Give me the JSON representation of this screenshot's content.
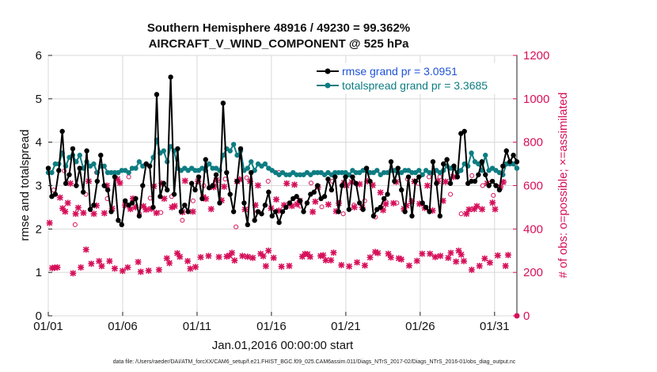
{
  "chart_data": {
    "type": "line",
    "title": "Southern Hemisphere 48916 / 49230 = 99.362%",
    "subtitle": "AIRCRAFT_V_WIND_COMPONENT @ 525 hPa",
    "xlabel": "Jan.01,2016 00:00:00 start",
    "ylabel": "rmse and totalspread",
    "y2label": "# of obs: o=possible; ×=assimilated",
    "xlim": [
      0,
      31.5
    ],
    "ylim": [
      0,
      6
    ],
    "y2lim": [
      0,
      1200
    ],
    "x_ticks": [
      0,
      5,
      10,
      15,
      20,
      25,
      30
    ],
    "x_tick_labels": [
      "01/01",
      "01/06",
      "01/11",
      "01/16",
      "01/21",
      "01/26",
      "01/31"
    ],
    "y_ticks": [
      0,
      1,
      2,
      3,
      4,
      5,
      6
    ],
    "y2_ticks": [
      0,
      200,
      400,
      600,
      800,
      1000,
      1200
    ],
    "colors": {
      "rmse": "#000000",
      "spread": "#0d7d82",
      "obs": "#d6105a",
      "legend_rmse_text": "#1f52d6",
      "legend_spread_text": "#0d7d82"
    },
    "legend": [
      "rmse grand pr = 3.0951",
      "totalspread grand pr = 3.3685"
    ],
    "series": [
      {
        "name": "rmse",
        "values": [
          3.4,
          2.75,
          2.8,
          3.35,
          4.25,
          3.05,
          3.25,
          3.85,
          3.0,
          3.4,
          2.85,
          3.8,
          2.45,
          2.55,
          3.1,
          3.7,
          3.0,
          2.9,
          2.4,
          3.2,
          2.2,
          2.1,
          2.65,
          2.55,
          2.6,
          2.7,
          2.3,
          3.0,
          3.5,
          3.45,
          2.5,
          5.1,
          2.75,
          3.05,
          2.9,
          5.5,
          2.8,
          3.85,
          2.4,
          2.55,
          2.4,
          3.05,
          2.9,
          3.2,
          2.7,
          3.6,
          2.95,
          3.0,
          3.25,
          2.6,
          4.9,
          3.3,
          2.8,
          2.4,
          3.1,
          3.85,
          2.6,
          2.1,
          3.3,
          2.2,
          2.4,
          2.35,
          2.55,
          2.85,
          2.3,
          2.4,
          2.15,
          2.4,
          2.5,
          2.6,
          2.7,
          2.75,
          2.65,
          2.4,
          2.6,
          2.8,
          2.85,
          3.0,
          2.7,
          2.75,
          3.15,
          2.9,
          3.2,
          2.4,
          3.0,
          3.2,
          2.45,
          3.2,
          3.05,
          2.6,
          2.45,
          3.4,
          3.1,
          2.3,
          2.45,
          2.5,
          2.7,
          2.8,
          3.55,
          3.1,
          3.4,
          2.9,
          2.4,
          3.2,
          2.3,
          3.1,
          3.2,
          2.6,
          2.5,
          2.4,
          3.55,
          3.05,
          2.3,
          3.5,
          3.6,
          3.05,
          3.45,
          3.2,
          4.2,
          4.25,
          3.05,
          3.1,
          3.1,
          3.25,
          3.55,
          3.25,
          3.0,
          3.1,
          3.0,
          2.9,
          3.45,
          3.8,
          3.55,
          3.7,
          3.55
        ]
      },
      {
        "name": "totalspread",
        "values": [
          3.3,
          3.3,
          3.5,
          3.5,
          3.75,
          3.45,
          3.65,
          3.7,
          3.55,
          3.7,
          3.4,
          3.55,
          3.45,
          3.5,
          3.3,
          3.45,
          3.45,
          3.3,
          3.3,
          3.3,
          3.3,
          3.35,
          3.35,
          3.3,
          3.4,
          3.4,
          3.55,
          3.45,
          3.5,
          3.45,
          3.65,
          4.05,
          3.75,
          3.8,
          3.55,
          3.9,
          3.8,
          3.4,
          3.35,
          3.4,
          3.35,
          3.4,
          3.35,
          3.35,
          3.4,
          3.35,
          3.5,
          3.4,
          3.4,
          3.35,
          3.7,
          3.85,
          3.8,
          3.95,
          3.7,
          3.8,
          3.35,
          3.4,
          3.55,
          3.35,
          3.5,
          3.45,
          3.5,
          3.4,
          3.35,
          3.3,
          3.25,
          3.3,
          3.25,
          3.25,
          3.3,
          3.25,
          3.25,
          3.25,
          3.3,
          3.25,
          3.3,
          3.3,
          3.3,
          3.25,
          3.3,
          3.25,
          3.3,
          3.3,
          3.3,
          3.3,
          3.25,
          3.35,
          3.3,
          3.3,
          3.35,
          3.35,
          3.3,
          3.3,
          3.35,
          3.25,
          3.3,
          3.3,
          3.35,
          3.35,
          3.3,
          3.3,
          3.35,
          3.35,
          3.3,
          3.3,
          3.35,
          3.25,
          3.35,
          3.3,
          3.3,
          3.35,
          3.3,
          3.35,
          3.45,
          3.4,
          3.4,
          3.3,
          3.35,
          3.5,
          3.45,
          3.75,
          3.55,
          3.5,
          3.35,
          3.7,
          3.35,
          3.4,
          3.35,
          3.3,
          3.25,
          3.5,
          3.5,
          3.5,
          3.4
        ]
      },
      {
        "name": "obs_assimilated",
        "axis": "right",
        "values": [
          428,
          220,
          222,
          223,
          545,
          495,
          480,
          520,
          610,
          196,
          470,
          498,
          223,
          474,
          305,
          620,
          240,
          470,
          508,
          252,
          229,
          473,
          600,
          252,
          494,
          218,
          630,
          612,
          207,
          510,
          223,
          492,
          540,
          500,
          248,
          203,
          505,
          489,
          208,
          493,
          597,
          474,
          212,
          610,
          540,
          265,
          243,
          500,
          506,
          288,
          272,
          478,
          622,
          252,
          217,
          480,
          225,
          620,
          270,
          547,
          539,
          276,
          492,
          593,
          625,
          271,
          532,
          595,
          273,
          278,
          290,
          255,
          619,
          629,
          276,
          490,
          272,
          620,
          267,
          510,
          601,
          286,
          275,
          229,
          300,
          496,
          267,
          536,
          484,
          227,
          510,
          610,
          230,
          506,
          604,
          514,
          530,
          273,
          285,
          284,
          272,
          479,
          526,
          593,
          276,
          279,
          256,
          513,
          256,
          291,
          482,
          519,
          234,
          613,
          600,
          228,
          616,
          500,
          246,
          607,
          500,
          232,
          620,
          269,
          602,
          294,
          289,
          568,
          487,
          515,
          286,
          269,
          519,
          617,
          265,
          260,
          493,
          508,
          231,
          528,
          619,
          253,
          516,
          286,
          497,
          600,
          286,
          485,
          271,
          620,
          276,
          530,
          618,
          267,
          290,
          640,
          250,
          300,
          282,
          252,
          470,
          490,
          212,
          492,
          505,
          230,
          491,
          264,
          610,
          245,
          521,
          491,
          278,
          594,
          616,
          230,
          280
        ]
      },
      {
        "name": "obs_possible",
        "axis": "right",
        "values": [
          580,
          668,
          420,
          560,
          660,
          540,
          660,
          640,
          470,
          542,
          476,
          550,
          440,
          530,
          600,
          600,
          630,
          410,
          636,
          480,
          620,
          660,
          516,
          505,
          612,
          502,
          620,
          470,
          510,
          530,
          455,
          525,
          520,
          630,
          610,
          640,
          640,
          560,
          470,
          646,
          600,
          555,
          617
        ]
      }
    ],
    "footnote": "data file: /Users/raeder/DAI/ATM_forcXX/CAM6_setup/f.e21.FHIST_BGC.f09_025.CAM6assim.011/Diags_NTrS_2017-02/Diags_NTrS_2016-01/obs_diag_output.nc"
  }
}
